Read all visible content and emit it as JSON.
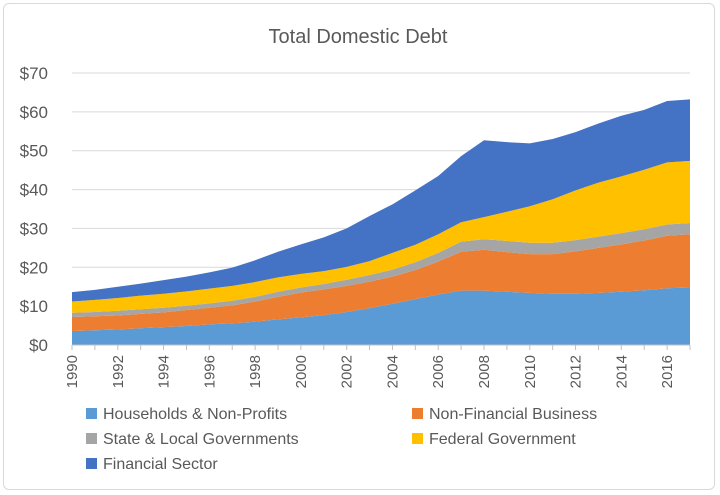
{
  "chart_data": {
    "type": "area",
    "stacked": true,
    "title": "Total Domestic Debt",
    "xlabel": "",
    "ylabel": "",
    "ylim": [
      0,
      70
    ],
    "yticks": [
      "$0",
      "$10",
      "$20",
      "$30",
      "$40",
      "$50",
      "$60",
      "$70"
    ],
    "ytick_values": [
      0,
      10,
      20,
      30,
      40,
      50,
      60,
      70
    ],
    "xtick_labels": [
      "1990",
      "1992",
      "1994",
      "1996",
      "1998",
      "2000",
      "2002",
      "2004",
      "2006",
      "2008",
      "2010",
      "2012",
      "2014",
      "2016"
    ],
    "x": [
      1990,
      1991,
      1992,
      1993,
      1994,
      1995,
      1996,
      1997,
      1998,
      1999,
      2000,
      2001,
      2002,
      2003,
      2004,
      2005,
      2006,
      2007,
      2008,
      2009,
      2010,
      2011,
      2012,
      2013,
      2014,
      2015,
      2016,
      2017
    ],
    "grid": true,
    "legend_position": "bottom",
    "series": [
      {
        "name": "Households & Non-Profits",
        "color": "#5b9bd5",
        "values": [
          3.6,
          3.8,
          4.0,
          4.3,
          4.6,
          4.9,
          5.3,
          5.6,
          6.0,
          6.6,
          7.1,
          7.7,
          8.5,
          9.5,
          10.6,
          11.8,
          13.0,
          14.0,
          14.0,
          13.7,
          13.4,
          13.2,
          13.2,
          13.4,
          13.7,
          14.1,
          14.6,
          14.8
        ]
      },
      {
        "name": "Non-Financial Business",
        "color": "#ed7d31",
        "values": [
          3.6,
          3.6,
          3.6,
          3.7,
          3.8,
          4.1,
          4.3,
          4.6,
          5.2,
          5.8,
          6.4,
          6.6,
          6.7,
          6.8,
          7.0,
          7.5,
          8.5,
          10.0,
          10.5,
          10.2,
          10.0,
          10.2,
          10.9,
          11.6,
          12.2,
          12.8,
          13.5,
          13.7
        ]
      },
      {
        "name": "State & Local Governments",
        "color": "#a5a5a5",
        "values": [
          1.1,
          1.1,
          1.2,
          1.2,
          1.2,
          1.1,
          1.1,
          1.2,
          1.2,
          1.3,
          1.3,
          1.4,
          1.6,
          1.7,
          1.8,
          2.0,
          2.2,
          2.6,
          2.7,
          2.9,
          2.9,
          2.9,
          2.9,
          2.9,
          2.9,
          2.9,
          2.9,
          2.9
        ]
      },
      {
        "name": "Federal Government",
        "color": "#ffc000",
        "values": [
          2.9,
          3.1,
          3.3,
          3.5,
          3.6,
          3.7,
          3.8,
          3.8,
          3.8,
          3.7,
          3.5,
          3.3,
          3.3,
          3.6,
          4.3,
          4.5,
          4.8,
          5.0,
          5.7,
          7.5,
          9.4,
          11.2,
          12.8,
          13.9,
          14.6,
          15.3,
          16.0,
          16.0
        ]
      },
      {
        "name": "Financial Sector",
        "color": "#4472c4",
        "values": [
          2.4,
          2.6,
          2.9,
          3.1,
          3.5,
          3.8,
          4.2,
          4.7,
          5.6,
          6.6,
          7.6,
          8.7,
          9.9,
          11.6,
          12.5,
          14.0,
          15.0,
          17.0,
          19.8,
          17.9,
          16.2,
          15.5,
          15.0,
          15.2,
          15.6,
          15.4,
          15.8,
          15.8
        ]
      }
    ]
  }
}
